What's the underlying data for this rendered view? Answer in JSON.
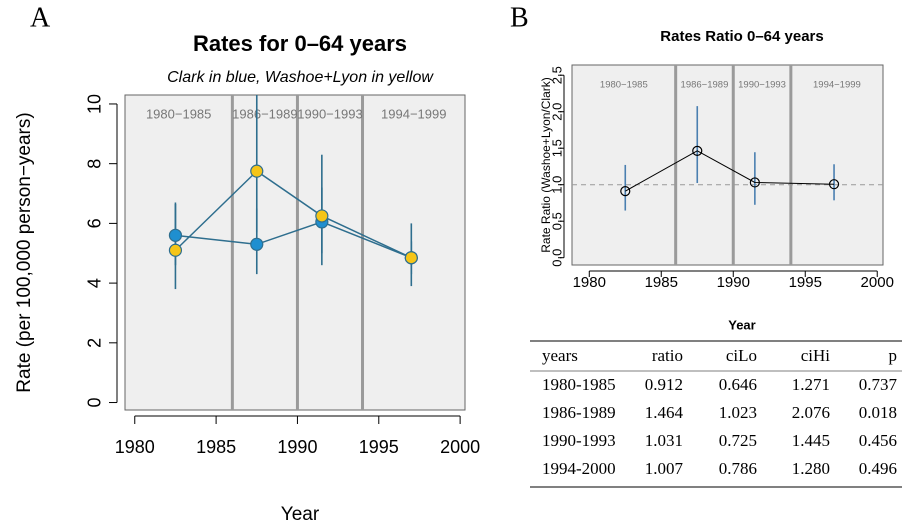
{
  "chart_data": [
    {
      "type": "line",
      "panel_label": "A",
      "title": "Rates for 0–64 years",
      "subtitle": "Clark in blue, Washoe+Lyon in yellow",
      "xlabel": "Year",
      "ylabel": "Rate (per 100,000 person−years)",
      "xlim": [
        1979.4,
        2000.3
      ],
      "ylim": [
        -0.25,
        10.3
      ],
      "xticks": [
        1980,
        1985,
        1990,
        1995,
        2000
      ],
      "yticks": [
        0,
        2,
        4,
        6,
        8,
        10
      ],
      "period_breaks": [
        1986,
        1990,
        1994
      ],
      "periods": [
        "1980−1985",
        "1986−1989",
        "1990−1993",
        "1994−1999"
      ],
      "x": [
        1982.5,
        1987.5,
        1991.5,
        1997
      ],
      "series": [
        {
          "color": "#1f8fd0",
          "values": [
            5.6,
            5.3,
            6.05,
            4.85
          ],
          "lower": [
            4.6,
            4.3,
            5.0,
            4.3
          ],
          "upper": [
            6.65,
            6.5,
            7.2,
            5.4
          ]
        },
        {
          "color": "#f5c518",
          "values": [
            5.1,
            7.75,
            6.25,
            4.85
          ],
          "lower": [
            3.8,
            5.7,
            4.6,
            3.9
          ],
          "upper": [
            6.7,
            10.3,
            8.3,
            6.0
          ]
        }
      ]
    },
    {
      "type": "line",
      "panel_label": "B",
      "title": "Rates Ratio 0–64 years",
      "xlabel": "Year",
      "ylabel": "Rate Ratio (Washoe+Lyon/Clark)",
      "xlim": [
        1978.8,
        2000.4
      ],
      "ylim": [
        -0.1,
        2.64
      ],
      "xticks": [
        1980,
        1985,
        1990,
        1995,
        2000
      ],
      "yticks": [
        {
          "value": 0,
          "label": "0.0"
        },
        0.5,
        {
          "value": 1,
          "label": "1.0"
        },
        1.5,
        {
          "value": 2,
          "label": "2.0"
        },
        2.5
      ],
      "reference_line": 1,
      "period_breaks": [
        1986,
        1990,
        1994
      ],
      "periods": [
        "1980−1985",
        "1986−1989",
        "1990−1993",
        "1994−1999"
      ],
      "x": [
        1982.5,
        1987.5,
        1991.5,
        1997
      ],
      "series": [
        {
          "color": "#000000",
          "values": [
            0.912,
            1.464,
            1.031,
            1.007
          ],
          "lower": [
            0.646,
            1.023,
            0.725,
            0.786
          ],
          "upper": [
            1.271,
            2.076,
            1.445,
            1.28
          ]
        }
      ]
    }
  ],
  "table": {
    "columns": [
      "years",
      "ratio",
      "ciLo",
      "ciHi",
      "p"
    ],
    "rows": [
      [
        "1980-1985",
        "0.912",
        "0.646",
        "1.271",
        "0.737"
      ],
      [
        "1986-1989",
        "1.464",
        "1.023",
        "2.076",
        "0.018"
      ],
      [
        "1990-1993",
        "1.031",
        "0.725",
        "1.445",
        "0.456"
      ],
      [
        "1994-2000",
        "1.007",
        "0.786",
        "1.280",
        "0.496"
      ]
    ]
  }
}
